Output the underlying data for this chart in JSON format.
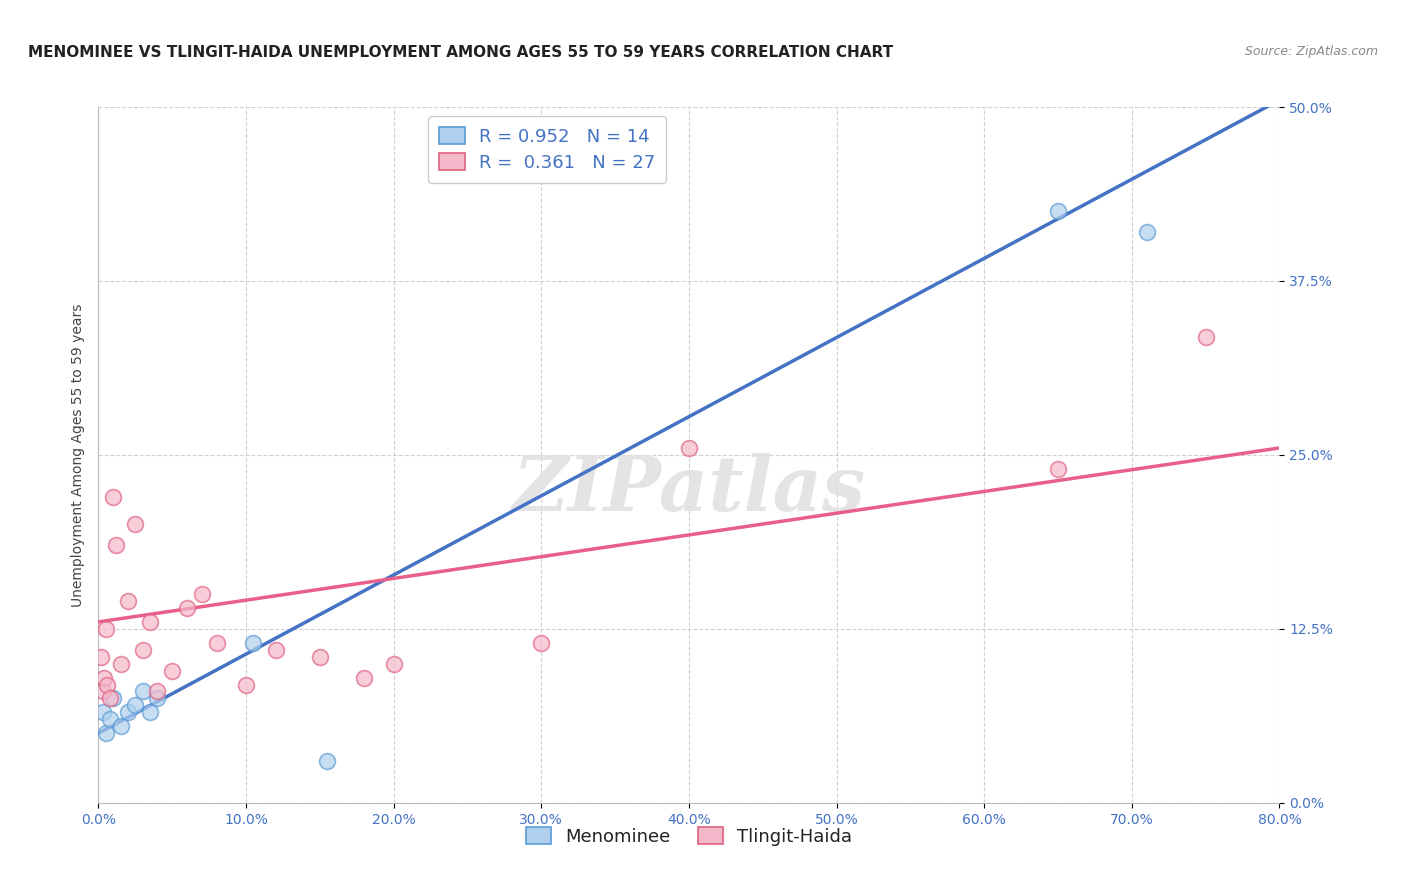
{
  "title": "MENOMINEE VS TLINGIT-HAIDA UNEMPLOYMENT AMONG AGES 55 TO 59 YEARS CORRELATION CHART",
  "source": "Source: ZipAtlas.com",
  "ylabel": "Unemployment Among Ages 55 to 59 years",
  "xlim": [
    0,
    80
  ],
  "ylim": [
    0,
    50
  ],
  "xlabel_tick_vals": [
    0,
    10,
    20,
    30,
    40,
    50,
    60,
    70,
    80
  ],
  "ylabel_tick_vals": [
    0,
    12.5,
    25.0,
    37.5,
    50.0
  ],
  "menominee_color_fill": "#aecfed",
  "menominee_color_edge": "#5b9bd5",
  "tlingit_color_fill": "#f4b8cb",
  "tlingit_color_edge": "#e06080",
  "trendline_menominee_color": "#4472c4",
  "trendline_tlingit_color": "#e8608a",
  "legend_labels_bottom": [
    "Menominee",
    "Tlingit-Haida"
  ],
  "watermark": "ZIPatlas",
  "background_color": "#ffffff",
  "grid_color": "#cccccc",
  "title_fontsize": 11,
  "axis_label_fontsize": 10,
  "tick_fontsize": 10,
  "legend_fontsize": 13,
  "source_fontsize": 9,
  "menominee_r": "0.952",
  "menominee_n": "14",
  "tlingit_r": "0.361",
  "tlingit_n": "27",
  "menominee_points_x": [
    0.3,
    0.5,
    0.8,
    1.0,
    1.5,
    2.0,
    2.5,
    3.0,
    3.5,
    4.0,
    10.5,
    15.5,
    65.0,
    71.0
  ],
  "menominee_points_y": [
    6.5,
    5.0,
    6.0,
    7.5,
    5.5,
    6.5,
    7.0,
    8.0,
    6.5,
    7.5,
    11.5,
    3.0,
    42.5,
    41.0
  ],
  "tlingit_points_x": [
    0.2,
    0.3,
    0.4,
    0.5,
    0.6,
    0.8,
    1.0,
    1.2,
    1.5,
    2.0,
    2.5,
    3.0,
    3.5,
    4.0,
    5.0,
    6.0,
    7.0,
    8.0,
    10.0,
    12.0,
    15.0,
    18.0,
    20.0,
    30.0,
    40.0,
    65.0,
    75.0
  ],
  "tlingit_points_y": [
    10.5,
    8.0,
    9.0,
    12.5,
    8.5,
    7.5,
    22.0,
    18.5,
    10.0,
    14.5,
    20.0,
    11.0,
    13.0,
    8.0,
    9.5,
    14.0,
    15.0,
    11.5,
    8.5,
    11.0,
    10.5,
    9.0,
    10.0,
    11.5,
    25.5,
    24.0,
    33.5
  ],
  "trendline_men_x0": 0,
  "trendline_men_y0": 5.0,
  "trendline_men_x1": 80,
  "trendline_men_y1": 50.5,
  "trendline_tl_x0": 0,
  "trendline_tl_y0": 13.0,
  "trendline_tl_x1": 80,
  "trendline_tl_y1": 25.5
}
